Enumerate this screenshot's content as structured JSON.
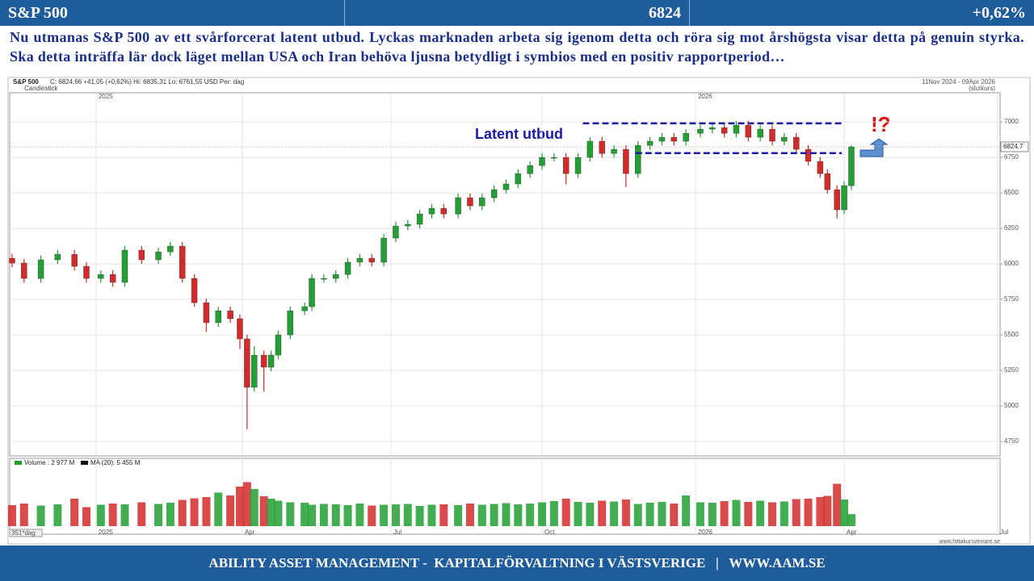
{
  "header": {
    "title": "S&P 500",
    "price": "6824",
    "change": "+0,62%"
  },
  "commentary": "Nu utmanas S&P 500 av ett svårforcerat latent utbud. Lyckas marknaden arbeta sig igenom detta och röra sig mot årshögsta visar detta på genuin styrka. Ska detta inträffa lär dock läget mellan USA och Iran behöva ljusna betydligt i symbios med en positiv rapportperiod…",
  "footer": "ABILITY ASSET MANAGEMENT -  KAPITALFÖRVALTNING I VÄSTSVERIGE   |   WWW.AAM.SE",
  "chart_data": {
    "type": "candlestick",
    "title": "S&P 500",
    "info": "C: 6824,66   +41,05 (+0,62%)   Hi: 6835,31   Lo: 6761,55   USD   Per: dag",
    "style_label": "Candlestick",
    "period": "11Nov 2024 - 09Apr 2026",
    "price_basis": "(slutkurs)",
    "x_count_label": "351*dag",
    "source": "www.hittakursvinnare.se",
    "up_color": "#22a033",
    "down_color": "#d42a2a",
    "x": [
      -35,
      -30,
      -23,
      -16,
      -9,
      -4,
      2,
      7,
      12,
      19,
      26,
      31,
      36,
      41,
      46,
      51,
      56,
      60,
      63,
      66,
      70,
      73,
      76,
      81,
      87,
      90,
      95,
      100,
      105,
      110,
      115,
      120,
      125,
      130,
      135,
      140,
      145,
      151,
      156,
      161,
      166,
      171,
      176,
      181,
      186,
      191,
      196,
      201,
      206,
      211,
      216,
      221,
      226,
      231,
      236,
      241,
      246,
      252,
      257,
      262,
      267,
      272,
      277,
      282,
      287,
      292,
      297,
      302,
      305,
      309,
      312,
      315
    ],
    "open": [
      6040,
      6006,
      5898,
      6029,
      6068,
      5983,
      5898,
      5926,
      5870,
      6097,
      6029,
      6085,
      6125,
      5898,
      5727,
      5586,
      5670,
      5614,
      5472,
      5131,
      5358,
      5273,
      5358,
      5500,
      5670,
      5699,
      5898,
      5898,
      5926,
      6012,
      6040,
      6012,
      6182,
      6267,
      6279,
      6352,
      6392,
      6352,
      6466,
      6409,
      6466,
      6523,
      6563,
      6636,
      6693,
      6750,
      6750,
      6636,
      6750,
      6864,
      6778,
      6807,
      6636,
      6835,
      6864,
      6892,
      6864,
      6920,
      6949,
      6960,
      6920,
      6977,
      6892,
      6949,
      6864,
      6892,
      6807,
      6722,
      6636,
      6523,
      6381,
      6551
    ],
    "high": [
      6070,
      6036,
      6059,
      6098,
      6098,
      6013,
      5956,
      5956,
      6127,
      6127,
      6115,
      6155,
      6155,
      5928,
      5757,
      5700,
      5700,
      5644,
      5502,
      5420,
      5388,
      5388,
      5530,
      5700,
      5729,
      5928,
      5928,
      5956,
      6042,
      6070,
      6070,
      6212,
      6297,
      6309,
      6382,
      6422,
      6422,
      6496,
      6496,
      6496,
      6553,
      6593,
      6666,
      6723,
      6780,
      6780,
      6780,
      6780,
      6894,
      6894,
      6837,
      6837,
      6865,
      6894,
      6922,
      6922,
      6950,
      6979,
      6990,
      6990,
      7007,
      7007,
      6979,
      6979,
      6922,
      6922,
      6837,
      6752,
      6666,
      6553,
      6581,
      6835
    ],
    "low": [
      5976,
      5868,
      5868,
      5999,
      5953,
      5868,
      5868,
      5840,
      5840,
      5999,
      5999,
      6055,
      5868,
      5697,
      5520,
      5556,
      5584,
      5400,
      4835,
      5101,
      5100,
      5243,
      5328,
      5470,
      5640,
      5669,
      5868,
      5868,
      5896,
      5982,
      5982,
      5982,
      6152,
      6237,
      6249,
      6322,
      6322,
      6322,
      6379,
      6379,
      6436,
      6493,
      6533,
      6606,
      6663,
      6720,
      6560,
      6606,
      6720,
      6748,
      6748,
      6540,
      6606,
      6805,
      6834,
      6834,
      6834,
      6890,
      6919,
      6890,
      6890,
      6862,
      6862,
      6834,
      6834,
      6777,
      6692,
      6606,
      6493,
      6320,
      6351,
      6521
    ],
    "close": [
      6006,
      5898,
      6029,
      6068,
      5983,
      5898,
      5926,
      5870,
      6097,
      6029,
      6085,
      6125,
      5898,
      5727,
      5586,
      5670,
      5614,
      5472,
      5131,
      5358,
      5273,
      5358,
      5500,
      5670,
      5699,
      5898,
      5898,
      5926,
      6012,
      6040,
      6012,
      6182,
      6267,
      6279,
      6352,
      6392,
      6352,
      6466,
      6409,
      6466,
      6523,
      6563,
      6636,
      6693,
      6750,
      6750,
      6636,
      6750,
      6864,
      6778,
      6807,
      6636,
      6835,
      6864,
      6892,
      6864,
      6920,
      6949,
      6960,
      6920,
      6977,
      6892,
      6949,
      6864,
      6892,
      6807,
      6722,
      6636,
      6523,
      6381,
      6551,
      6824
    ],
    "xlim": [
      -36,
      377
    ],
    "xticks": [
      {
        "value": 0,
        "label": "2025"
      },
      {
        "value": 61,
        "label": "Apr"
      },
      {
        "value": 123,
        "label": "Jul"
      },
      {
        "value": 186,
        "label": "Oct"
      },
      {
        "value": 250,
        "label": "2026"
      },
      {
        "value": 312,
        "label": "Apr"
      },
      {
        "value": 376,
        "label": "Jul"
      }
    ],
    "ylim": [
      4648,
      7205
    ],
    "yticks": [
      4750,
      5000,
      5250,
      5500,
      5750,
      6000,
      6250,
      6500,
      6750,
      7000
    ],
    "grid": true,
    "last_price": {
      "value": 6824.7,
      "label": "6824,7"
    },
    "annotation_text": "Latent utbud",
    "alert_text": "!?",
    "resistance_color": "#1a1aa8",
    "resistance": [
      {
        "value": 6990,
        "from": 203,
        "to": 311
      },
      {
        "value": 6780,
        "from": 225,
        "to": 311
      }
    ],
    "volume": {
      "legend": "Volume : 2 977 M",
      "ma_legend": "MA (20): 5 455 M",
      "ylim": [
        0,
        14000
      ],
      "values": [
        5200,
        5600,
        5100,
        5400,
        6800,
        4700,
        5300,
        5600,
        5400,
        5900,
        5500,
        5800,
        6500,
        6900,
        7200,
        8300,
        7600,
        9800,
        10900,
        9200,
        7400,
        6800,
        6300,
        5900,
        5800,
        5300,
        5500,
        5400,
        5200,
        5600,
        5100,
        5300,
        5400,
        5500,
        5000,
        5300,
        5400,
        5200,
        5600,
        5300,
        5500,
        5700,
        5400,
        5600,
        5900,
        6200,
        6800,
        6000,
        5800,
        6300,
        6100,
        6600,
        5500,
        5800,
        6000,
        5600,
        7600,
        5900,
        5800,
        6200,
        6500,
        6000,
        6300,
        5900,
        6100,
        6700,
        6800,
        7200,
        7500,
        10500,
        6600,
        2977
      ]
    }
  }
}
